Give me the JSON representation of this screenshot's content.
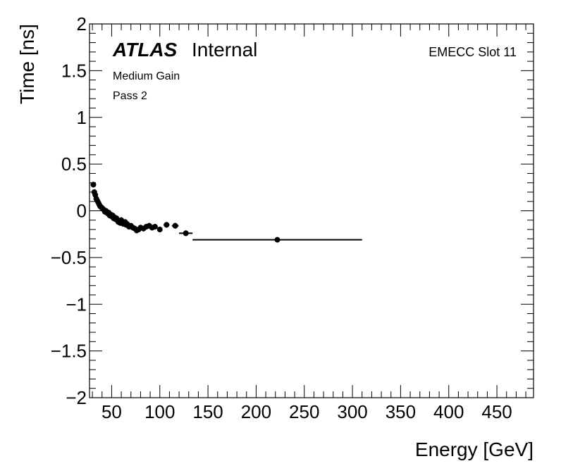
{
  "chart_data": {
    "type": "scatter",
    "title": "",
    "xlabel": "Energy [GeV]",
    "ylabel": "Time [ns]",
    "xlim": [
      27,
      488
    ],
    "ylim": [
      -2,
      2
    ],
    "x_ticks": [
      50,
      100,
      150,
      200,
      250,
      300,
      350,
      400,
      450
    ],
    "x_tick_labels": [
      "50",
      "100",
      "150",
      "200",
      "250",
      "300",
      "350",
      "400",
      "450"
    ],
    "y_ticks": [
      -2,
      -1.5,
      -1,
      -0.5,
      0,
      0.5,
      1,
      1.5,
      2
    ],
    "y_tick_labels": [
      "−2",
      "−1.5",
      "−1",
      "−0.5",
      "0",
      "0.5",
      "1",
      "1.5",
      "2"
    ],
    "grid": false,
    "annotations": {
      "atlas": "ATLAS",
      "internal": "Internal",
      "gain": "Medium Gain",
      "pass": "Pass 2",
      "slot": "EMECC Slot 11"
    },
    "points": [
      {
        "x": 31,
        "y": 0.28,
        "xerr": 1,
        "yerr": 0.03
      },
      {
        "x": 32,
        "y": 0.2,
        "xerr": 1,
        "yerr": 0.03
      },
      {
        "x": 33,
        "y": 0.17,
        "xerr": 1,
        "yerr": 0.03
      },
      {
        "x": 34,
        "y": 0.13,
        "xerr": 1,
        "yerr": 0.03
      },
      {
        "x": 35,
        "y": 0.11,
        "xerr": 1,
        "yerr": 0.03
      },
      {
        "x": 36,
        "y": 0.09,
        "xerr": 1,
        "yerr": 0.03
      },
      {
        "x": 37,
        "y": 0.07,
        "xerr": 1,
        "yerr": 0.03
      },
      {
        "x": 38,
        "y": 0.05,
        "xerr": 1,
        "yerr": 0.03
      },
      {
        "x": 39,
        "y": 0.04,
        "xerr": 1,
        "yerr": 0.03
      },
      {
        "x": 40,
        "y": 0.03,
        "xerr": 1,
        "yerr": 0.03
      },
      {
        "x": 41,
        "y": 0.02,
        "xerr": 1,
        "yerr": 0.03
      },
      {
        "x": 42,
        "y": 0.01,
        "xerr": 1,
        "yerr": 0.03
      },
      {
        "x": 43,
        "y": -0.01,
        "xerr": 1,
        "yerr": 0.03
      },
      {
        "x": 44,
        "y": 0.0,
        "xerr": 1,
        "yerr": 0.03
      },
      {
        "x": 45,
        "y": -0.02,
        "xerr": 1,
        "yerr": 0.03
      },
      {
        "x": 46,
        "y": -0.03,
        "xerr": 1,
        "yerr": 0.03
      },
      {
        "x": 47,
        "y": -0.02,
        "xerr": 1,
        "yerr": 0.03
      },
      {
        "x": 48,
        "y": -0.05,
        "xerr": 1,
        "yerr": 0.03
      },
      {
        "x": 49,
        "y": -0.04,
        "xerr": 1,
        "yerr": 0.03
      },
      {
        "x": 50,
        "y": -0.06,
        "xerr": 1,
        "yerr": 0.03
      },
      {
        "x": 51,
        "y": -0.05,
        "xerr": 1,
        "yerr": 0.03
      },
      {
        "x": 52,
        "y": -0.08,
        "xerr": 1,
        "yerr": 0.03
      },
      {
        "x": 53,
        "y": -0.07,
        "xerr": 1,
        "yerr": 0.03
      },
      {
        "x": 54,
        "y": -0.09,
        "xerr": 1,
        "yerr": 0.03
      },
      {
        "x": 55,
        "y": -0.08,
        "xerr": 1,
        "yerr": 0.03
      },
      {
        "x": 56,
        "y": -0.1,
        "xerr": 1,
        "yerr": 0.03
      },
      {
        "x": 57,
        "y": -0.12,
        "xerr": 1,
        "yerr": 0.03
      },
      {
        "x": 58,
        "y": -0.11,
        "xerr": 1,
        "yerr": 0.03
      },
      {
        "x": 59,
        "y": -0.13,
        "xerr": 1,
        "yerr": 0.03
      },
      {
        "x": 60,
        "y": -0.1,
        "xerr": 1,
        "yerr": 0.03
      },
      {
        "x": 61,
        "y": -0.12,
        "xerr": 1,
        "yerr": 0.03
      },
      {
        "x": 62,
        "y": -0.14,
        "xerr": 1,
        "yerr": 0.03
      },
      {
        "x": 63,
        "y": -0.13,
        "xerr": 1,
        "yerr": 0.03
      },
      {
        "x": 64,
        "y": -0.12,
        "xerr": 1,
        "yerr": 0.03
      },
      {
        "x": 65,
        "y": -0.15,
        "xerr": 1,
        "yerr": 0.03
      },
      {
        "x": 66,
        "y": -0.14,
        "xerr": 1,
        "yerr": 0.03
      },
      {
        "x": 68,
        "y": -0.17,
        "xerr": 1,
        "yerr": 0.03
      },
      {
        "x": 70,
        "y": -0.16,
        "xerr": 1,
        "yerr": 0.03
      },
      {
        "x": 72,
        "y": -0.18,
        "xerr": 1,
        "yerr": 0.03
      },
      {
        "x": 74,
        "y": -0.19,
        "xerr": 1,
        "yerr": 0.03
      },
      {
        "x": 76,
        "y": -0.21,
        "xerr": 1,
        "yerr": 0.03
      },
      {
        "x": 78,
        "y": -0.2,
        "xerr": 1,
        "yerr": 0.03
      },
      {
        "x": 80,
        "y": -0.18,
        "xerr": 1,
        "yerr": 0.03
      },
      {
        "x": 83,
        "y": -0.19,
        "xerr": 1.5,
        "yerr": 0.03
      },
      {
        "x": 86,
        "y": -0.17,
        "xerr": 1.5,
        "yerr": 0.03
      },
      {
        "x": 89,
        "y": -0.16,
        "xerr": 1.5,
        "yerr": 0.03
      },
      {
        "x": 92,
        "y": -0.18,
        "xerr": 1.5,
        "yerr": 0.03
      },
      {
        "x": 95,
        "y": -0.17,
        "xerr": 1.5,
        "yerr": 0.03
      },
      {
        "x": 100,
        "y": -0.2,
        "xerr": 2,
        "yerr": 0.03
      },
      {
        "x": 107,
        "y": -0.15,
        "xerr": 3,
        "yerr": 0.03
      },
      {
        "x": 116,
        "y": -0.16,
        "xerr": 3.5,
        "yerr": 0.03
      },
      {
        "x": 127,
        "y": -0.24,
        "xerr": 7,
        "yerr": 0.03
      },
      {
        "x": 222,
        "y": -0.31,
        "xerr": 88,
        "yerr": 0.02
      }
    ]
  }
}
